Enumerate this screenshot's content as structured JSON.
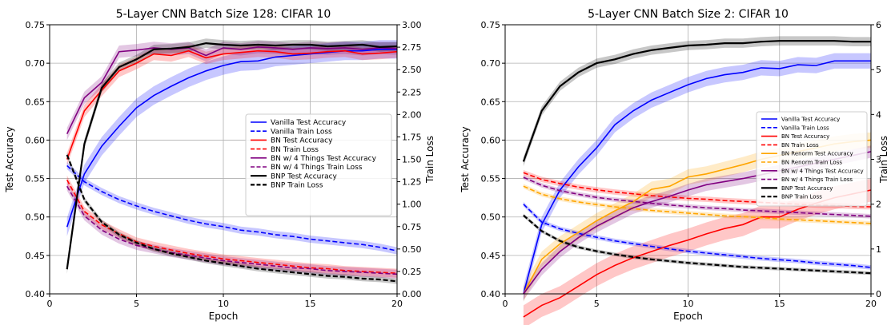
{
  "chart_data": [
    {
      "type": "line",
      "title": "5-Layer CNN Batch Size 128: CIFAR 10",
      "xlabel": "Epoch",
      "ylabel": "Test Accuracy",
      "y2label": "Train Loss",
      "xlim": [
        0,
        20
      ],
      "ylim": [
        0.4,
        0.75
      ],
      "y2lim": [
        0.0,
        3.0
      ],
      "xticks": [
        "0",
        "5",
        "10",
        "15",
        "20"
      ],
      "yticks": [
        "0.40",
        "0.45",
        "0.50",
        "0.55",
        "0.60",
        "0.65",
        "0.70",
        "0.75"
      ],
      "y2ticks": [
        "0.00",
        "0.25",
        "0.50",
        "0.75",
        "1.00",
        "1.25",
        "1.50",
        "1.75",
        "2.00",
        "2.25",
        "2.50",
        "2.75",
        "3.00"
      ],
      "grid": true,
      "legend_position": "center-right",
      "x": [
        1,
        2,
        3,
        4,
        5,
        6,
        7,
        8,
        9,
        10,
        11,
        12,
        13,
        14,
        15,
        16,
        17,
        18,
        19,
        20
      ],
      "series": [
        {
          "name": "Vanilla Test Accuracy",
          "axis": "left",
          "color": "#0000ff",
          "dash": "solid",
          "band": 0.012,
          "values": [
            0.487,
            0.556,
            0.592,
            0.618,
            0.642,
            0.658,
            0.67,
            0.681,
            0.69,
            0.697,
            0.702,
            0.703,
            0.708,
            0.71,
            0.712,
            0.714,
            0.716,
            0.716,
            0.718,
            0.718
          ]
        },
        {
          "name": "Vanilla Train Loss",
          "axis": "right",
          "color": "#0000ff",
          "dash": "dashed",
          "band": 0.04,
          "values": [
            1.43,
            1.25,
            1.14,
            1.05,
            0.98,
            0.92,
            0.87,
            0.82,
            0.78,
            0.75,
            0.71,
            0.69,
            0.66,
            0.64,
            0.61,
            0.59,
            0.57,
            0.55,
            0.52,
            0.48
          ]
        },
        {
          "name": "BN Test Accuracy",
          "axis": "left",
          "color": "#ff0000",
          "dash": "solid",
          "band": 0.008,
          "values": [
            0.575,
            0.638,
            0.665,
            0.69,
            0.7,
            0.712,
            0.71,
            0.716,
            0.707,
            0.712,
            0.714,
            0.716,
            0.715,
            0.712,
            0.713,
            0.715,
            0.716,
            0.712,
            0.713,
            0.715
          ]
        },
        {
          "name": "BN Train Loss",
          "axis": "right",
          "color": "#ff0000",
          "dash": "dashed",
          "band": 0.05,
          "values": [
            1.27,
            0.92,
            0.77,
            0.67,
            0.58,
            0.53,
            0.49,
            0.45,
            0.42,
            0.39,
            0.37,
            0.35,
            0.33,
            0.31,
            0.29,
            0.28,
            0.26,
            0.25,
            0.24,
            0.23
          ]
        },
        {
          "name": "BN w/ 4 Things Test Accuracy",
          "axis": "left",
          "color": "#800080",
          "dash": "solid",
          "band": 0.008,
          "values": [
            0.608,
            0.655,
            0.675,
            0.715,
            0.717,
            0.72,
            0.718,
            0.72,
            0.71,
            0.72,
            0.718,
            0.721,
            0.72,
            0.718,
            0.72,
            0.719,
            0.72,
            0.718,
            0.72,
            0.719
          ]
        },
        {
          "name": "BN w/ 4 Things Train Loss",
          "axis": "right",
          "color": "#800080",
          "dash": "dashed",
          "band": 0.05,
          "values": [
            1.2,
            0.87,
            0.71,
            0.61,
            0.54,
            0.5,
            0.46,
            0.43,
            0.4,
            0.37,
            0.35,
            0.33,
            0.31,
            0.29,
            0.28,
            0.26,
            0.25,
            0.24,
            0.23,
            0.22
          ]
        },
        {
          "name": "BNP Test Accuracy",
          "axis": "left",
          "color": "#000000",
          "dash": "solid",
          "band": 0.006,
          "values": [
            0.432,
            0.595,
            0.668,
            0.695,
            0.705,
            0.718,
            0.719,
            0.721,
            0.726,
            0.724,
            0.723,
            0.724,
            0.723,
            0.724,
            0.724,
            0.722,
            0.723,
            0.724,
            0.721,
            0.722
          ]
        },
        {
          "name": "BNP Train Loss",
          "axis": "right",
          "color": "#000000",
          "dash": "dashed",
          "band": 0.03,
          "values": [
            1.55,
            1.05,
            0.8,
            0.66,
            0.57,
            0.5,
            0.45,
            0.41,
            0.37,
            0.34,
            0.31,
            0.28,
            0.26,
            0.24,
            0.22,
            0.2,
            0.19,
            0.17,
            0.16,
            0.14
          ]
        }
      ]
    },
    {
      "type": "line",
      "title": "5-Layer CNN Batch Size 2: CIFAR 10",
      "xlabel": "Epoch",
      "ylabel": "Test Accuracy",
      "y2label": "Train Loss",
      "xlim": [
        0,
        20
      ],
      "ylim": [
        0.4,
        0.75
      ],
      "y2lim": [
        0,
        6
      ],
      "xticks": [
        "0",
        "5",
        "10",
        "15",
        "20"
      ],
      "yticks": [
        "0.40",
        "0.45",
        "0.50",
        "0.55",
        "0.60",
        "0.65",
        "0.70",
        "0.75"
      ],
      "y2ticks": [
        "0",
        "1",
        "2",
        "3",
        "4",
        "5",
        "6"
      ],
      "grid": true,
      "legend_position": "center-right",
      "x": [
        1,
        2,
        3,
        4,
        5,
        6,
        7,
        8,
        9,
        10,
        11,
        12,
        13,
        14,
        15,
        16,
        17,
        18,
        19,
        20
      ],
      "series": [
        {
          "name": "Vanilla Test Accuracy",
          "axis": "left",
          "color": "#0000ff",
          "dash": "solid",
          "band": 0.01,
          "values": [
            0.4,
            0.49,
            0.535,
            0.565,
            0.59,
            0.62,
            0.638,
            0.652,
            0.662,
            0.672,
            0.68,
            0.685,
            0.688,
            0.694,
            0.693,
            0.698,
            0.697,
            0.703,
            0.703,
            0.703
          ]
        },
        {
          "name": "Vanilla Train Loss",
          "axis": "right",
          "color": "#0000ff",
          "dash": "dashed",
          "band": 0.05,
          "values": [
            2.0,
            1.6,
            1.45,
            1.35,
            1.26,
            1.18,
            1.12,
            1.06,
            1.0,
            0.95,
            0.91,
            0.87,
            0.83,
            0.79,
            0.76,
            0.73,
            0.69,
            0.66,
            0.63,
            0.59
          ]
        },
        {
          "name": "BN Test Accuracy",
          "axis": "left",
          "color": "#ff0000",
          "dash": "solid",
          "band": 0.015,
          "values": [
            0.37,
            0.385,
            0.395,
            0.41,
            0.425,
            0.437,
            0.447,
            0.455,
            0.463,
            0.47,
            0.478,
            0.485,
            0.49,
            0.5,
            0.5,
            0.51,
            0.518,
            0.525,
            0.53,
            0.535
          ]
        },
        {
          "name": "BN Train Loss",
          "axis": "right",
          "color": "#ff0000",
          "dash": "dashed",
          "band": 0.06,
          "values": [
            2.7,
            2.55,
            2.46,
            2.38,
            2.32,
            2.27,
            2.23,
            2.19,
            2.16,
            2.13,
            2.11,
            2.08,
            2.06,
            2.04,
            2.02,
            2.0,
            1.98,
            1.97,
            1.95,
            1.94
          ]
        },
        {
          "name": "BN Renorm Test Accuracy",
          "axis": "left",
          "color": "#ffa500",
          "dash": "solid",
          "band": 0.01,
          "values": [
            0.4,
            0.445,
            0.465,
            0.48,
            0.495,
            0.508,
            0.52,
            0.536,
            0.54,
            0.552,
            0.556,
            0.562,
            0.568,
            0.575,
            0.58,
            0.585,
            0.59,
            0.595,
            0.598,
            0.6
          ]
        },
        {
          "name": "BN Renorm Train Loss",
          "axis": "right",
          "color": "#ffa500",
          "dash": "dashed",
          "band": 0.05,
          "values": [
            2.4,
            2.22,
            2.12,
            2.05,
            1.99,
            1.94,
            1.9,
            1.86,
            1.83,
            1.8,
            1.77,
            1.74,
            1.72,
            1.7,
            1.67,
            1.65,
            1.63,
            1.61,
            1.59,
            1.57
          ]
        },
        {
          "name": "BN w/ 4 Things Test Accuracy",
          "axis": "left",
          "color": "#800080",
          "dash": "solid",
          "band": 0.008,
          "values": [
            0.4,
            0.432,
            0.455,
            0.473,
            0.488,
            0.5,
            0.512,
            0.52,
            0.527,
            0.535,
            0.542,
            0.546,
            0.55,
            0.555,
            0.56,
            0.565,
            0.57,
            0.575,
            0.58,
            0.585
          ]
        },
        {
          "name": "BN w/ 4 Things Train Loss",
          "axis": "right",
          "color": "#800080",
          "dash": "dashed",
          "band": 0.05,
          "values": [
            2.6,
            2.42,
            2.3,
            2.22,
            2.15,
            2.1,
            2.06,
            2.02,
            1.98,
            1.95,
            1.92,
            1.9,
            1.87,
            1.85,
            1.83,
            1.81,
            1.79,
            1.77,
            1.75,
            1.73
          ]
        },
        {
          "name": "BNP Test Accuracy",
          "axis": "left",
          "color": "#000000",
          "dash": "solid",
          "band": 0.006,
          "values": [
            0.572,
            0.638,
            0.67,
            0.688,
            0.7,
            0.705,
            0.712,
            0.717,
            0.72,
            0.723,
            0.724,
            0.726,
            0.726,
            0.728,
            0.729,
            0.729,
            0.729,
            0.729,
            0.728,
            0.728
          ]
        },
        {
          "name": "BNP Train Loss",
          "axis": "right",
          "color": "#000000",
          "dash": "dashed",
          "band": 0.04,
          "values": [
            1.75,
            1.4,
            1.18,
            1.04,
            0.95,
            0.88,
            0.82,
            0.77,
            0.73,
            0.69,
            0.66,
            0.63,
            0.6,
            0.58,
            0.56,
            0.54,
            0.52,
            0.5,
            0.48,
            0.46
          ]
        }
      ]
    }
  ]
}
